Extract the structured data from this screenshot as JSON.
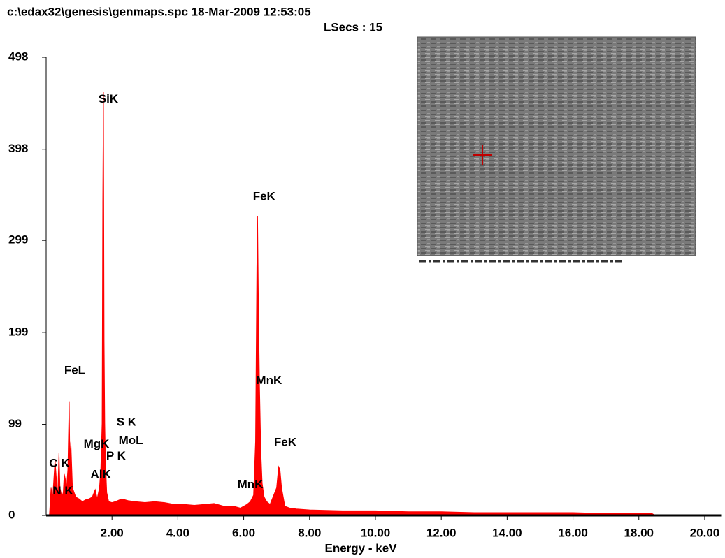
{
  "chart_data": {
    "type": "area",
    "title": "c:\\edax32\\genesis\\genmaps.spc  18-Mar-2009 12:53:05",
    "subtitle": "LSecs : 15",
    "x_label": "Energy - keV",
    "color": "#ff0000",
    "xlim": [
      0,
      20.5
    ],
    "ylim": [
      0,
      498
    ],
    "xticks": [
      {
        "value": 2,
        "label": "2.00"
      },
      {
        "value": 4,
        "label": "4.00"
      },
      {
        "value": 6,
        "label": "6.00"
      },
      {
        "value": 8,
        "label": "8.00"
      },
      {
        "value": 10,
        "label": "10.00"
      },
      {
        "value": 12,
        "label": "12.00"
      },
      {
        "value": 14,
        "label": "14.00"
      },
      {
        "value": 16,
        "label": "16.00"
      },
      {
        "value": 18,
        "label": "18.00"
      },
      {
        "value": 20,
        "label": "20.00"
      }
    ],
    "yticks": [
      0,
      99,
      199,
      299,
      398,
      498
    ],
    "x": [
      0.1,
      0.15,
      0.2,
      0.27,
      0.3,
      0.35,
      0.39,
      0.42,
      0.48,
      0.52,
      0.55,
      0.58,
      0.62,
      0.66,
      0.7,
      0.72,
      0.75,
      0.8,
      0.9,
      1.0,
      1.1,
      1.2,
      1.3,
      1.4,
      1.49,
      1.55,
      1.62,
      1.66,
      1.7,
      1.72,
      1.74,
      1.76,
      1.78,
      1.8,
      1.84,
      1.9,
      2.0,
      2.1,
      2.3,
      2.5,
      2.7,
      3.0,
      3.3,
      3.6,
      3.9,
      4.2,
      4.5,
      4.8,
      5.1,
      5.4,
      5.7,
      5.9,
      6.0,
      6.1,
      6.2,
      6.3,
      6.36,
      6.4,
      6.42,
      6.45,
      6.48,
      6.52,
      6.56,
      6.62,
      6.7,
      6.8,
      7.0,
      7.06,
      7.1,
      7.15,
      7.25,
      7.4,
      7.6,
      8.0,
      9.0,
      10.0,
      11.0,
      12.0,
      13.0,
      14.0,
      15.0,
      16.0,
      17.0,
      18.0,
      18.4,
      18.5
    ],
    "values": [
      0,
      30,
      20,
      60,
      45,
      20,
      68,
      30,
      20,
      25,
      45,
      40,
      30,
      50,
      124,
      60,
      80,
      30,
      20,
      18,
      15,
      17,
      18,
      20,
      28,
      18,
      30,
      50,
      100,
      340,
      460,
      190,
      100,
      60,
      25,
      15,
      14,
      15,
      18,
      16,
      15,
      14,
      15,
      14,
      12,
      12,
      11,
      12,
      13,
      10,
      10,
      8,
      10,
      12,
      15,
      22,
      80,
      270,
      325,
      220,
      140,
      70,
      35,
      20,
      15,
      12,
      30,
      53,
      50,
      30,
      10,
      8,
      7,
      6,
      5,
      5,
      4,
      4,
      3,
      3,
      3,
      3,
      2,
      2,
      2,
      0
    ],
    "annotations": [
      {
        "text": "SiK",
        "x": 1.89,
        "y": 452
      },
      {
        "text": "FeK",
        "x": 6.62,
        "y": 346
      },
      {
        "text": "FeL",
        "x": 0.87,
        "y": 157
      },
      {
        "text": "MnK",
        "x": 6.77,
        "y": 146
      },
      {
        "text": "S K",
        "x": 2.44,
        "y": 101
      },
      {
        "text": "MoL",
        "x": 2.57,
        "y": 81
      },
      {
        "text": "MgK",
        "x": 1.53,
        "y": 77
      },
      {
        "text": "P K",
        "x": 2.12,
        "y": 64
      },
      {
        "text": "C K",
        "x": 0.4,
        "y": 56
      },
      {
        "text": "AlK",
        "x": 1.66,
        "y": 44
      },
      {
        "text": "N K",
        "x": 0.51,
        "y": 26
      },
      {
        "text": "MnK",
        "x": 6.2,
        "y": 33
      },
      {
        "text": "FeK",
        "x": 7.26,
        "y": 79
      }
    ]
  }
}
